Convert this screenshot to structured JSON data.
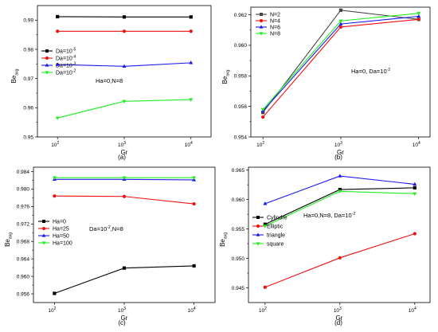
{
  "chart_data": [
    {
      "id": "a",
      "type": "line",
      "caption": "(a)",
      "xlabel": "Gr",
      "ylabel": "Be",
      "ylabel_sub": "avg",
      "x": [
        100,
        1000,
        10000
      ],
      "xscale": "log",
      "xlim": [
        50,
        20000
      ],
      "xticks": [
        {
          "value": 100,
          "base": "10",
          "exp": "2"
        },
        {
          "value": 1000,
          "base": "10",
          "exp": "3"
        },
        {
          "value": 10000,
          "base": "10",
          "exp": "4"
        }
      ],
      "ylim": [
        0.95,
        0.995
      ],
      "yticks": [
        {
          "value": 0.95,
          "label": "0.95"
        },
        {
          "value": 0.96,
          "label": "0.96"
        },
        {
          "value": 0.97,
          "label": "0.97"
        },
        {
          "value": 0.98,
          "label": "0.98"
        },
        {
          "value": 0.99,
          "label": "0.99"
        }
      ],
      "series": [
        {
          "name": "Da=10",
          "name_sup": "-5",
          "color": "#000000",
          "marker": "square",
          "values": [
            0.9912,
            0.9911,
            0.9911
          ]
        },
        {
          "name": "Da=10",
          "name_sup": "-4",
          "color": "#ee1111",
          "marker": "circle",
          "values": [
            0.9862,
            0.9862,
            0.9862
          ]
        },
        {
          "name": "Da=10",
          "name_sup": "-3",
          "color": "#1a1aee",
          "marker": "triangle-up",
          "values": [
            0.9748,
            0.9742,
            0.9754
          ]
        },
        {
          "name": "Da=10",
          "name_sup": "-2",
          "color": "#22ee22",
          "marker": "triangle-down",
          "values": [
            0.9565,
            0.9622,
            0.9628
          ]
        }
      ],
      "legend_position": "left",
      "annotation": {
        "text": "Ha=0,N=8"
      }
    },
    {
      "id": "b",
      "type": "line",
      "caption": "(b)",
      "xlabel": "Gr",
      "ylabel": "Be",
      "ylabel_sub": "avg",
      "x": [
        100,
        1000,
        10000
      ],
      "xscale": "log",
      "xlim": [
        70,
        14000
      ],
      "xticks": [
        {
          "value": 100,
          "base": "10",
          "exp": "2"
        },
        {
          "value": 1000,
          "base": "10",
          "exp": "3"
        },
        {
          "value": 10000,
          "base": "10",
          "exp": "4"
        }
      ],
      "ylim": [
        0.954,
        0.9625
      ],
      "yticks": [
        {
          "value": 0.954,
          "label": "0.954"
        },
        {
          "value": 0.956,
          "label": "0.956"
        },
        {
          "value": 0.958,
          "label": "0.958"
        },
        {
          "value": 0.96,
          "label": "0.960"
        },
        {
          "value": 0.962,
          "label": "0.962"
        }
      ],
      "series": [
        {
          "name": "N=2",
          "color": "#444444",
          "marker": "square",
          "values": [
            0.9556,
            0.9623,
            0.9617
          ]
        },
        {
          "name": "N=4",
          "color": "#ee1111",
          "marker": "circle",
          "values": [
            0.9553,
            0.9612,
            0.9617
          ]
        },
        {
          "name": "N=6",
          "color": "#1a1aee",
          "marker": "triangle-up",
          "values": [
            0.9557,
            0.9614,
            0.9619
          ]
        },
        {
          "name": "N=8",
          "color": "#22ee22",
          "marker": "triangle-down",
          "values": [
            0.9558,
            0.9616,
            0.9621
          ]
        }
      ],
      "legend_position": "top-left",
      "annotation": {
        "text": "Ha=0, Da=10",
        "text_sup": "-2"
      }
    },
    {
      "id": "c",
      "type": "line",
      "caption": "(c)",
      "xlabel": "Gr",
      "ylabel": "Be",
      "ylabel_sub": "avg",
      "x": [
        100,
        1000,
        10000
      ],
      "xscale": "log",
      "xlim": [
        50,
        20000
      ],
      "xticks": [
        {
          "value": 100,
          "base": "10",
          "exp": "2"
        },
        {
          "value": 1000,
          "base": "10",
          "exp": "3"
        },
        {
          "value": 10000,
          "base": "10",
          "exp": "4"
        }
      ],
      "ylim": [
        0.954,
        0.985
      ],
      "yticks": [
        {
          "value": 0.956,
          "label": "0.956"
        },
        {
          "value": 0.96,
          "label": "0.960"
        },
        {
          "value": 0.964,
          "label": "0.964"
        },
        {
          "value": 0.968,
          "label": "0.968"
        },
        {
          "value": 0.972,
          "label": "0.972"
        },
        {
          "value": 0.976,
          "label": "0.976"
        },
        {
          "value": 0.98,
          "label": "0.980"
        },
        {
          "value": 0.984,
          "label": "0.984"
        }
      ],
      "series": [
        {
          "name": "Ha=0",
          "color": "#000000",
          "marker": "square",
          "values": [
            0.9561,
            0.9619,
            0.9624
          ]
        },
        {
          "name": "Ha=25",
          "color": "#ee1111",
          "marker": "circle",
          "values": [
            0.9784,
            0.9783,
            0.9766
          ]
        },
        {
          "name": "Ha=50",
          "color": "#1a1aee",
          "marker": "triangle-up",
          "values": [
            0.9822,
            0.9822,
            0.9821
          ]
        },
        {
          "name": "Ha=100",
          "color": "#22ee22",
          "marker": "triangle-down",
          "values": [
            0.9826,
            0.9826,
            0.9826
          ]
        }
      ],
      "legend_position": "left",
      "annotation": {
        "text": "Da=10",
        "text_sup": "-2",
        "text_tail": ",N=8"
      }
    },
    {
      "id": "d",
      "type": "line",
      "caption": "(d)",
      "xlabel": "Gr",
      "ylabel": "Be",
      "ylabel_sub": "avg",
      "x": [
        100,
        1000,
        10000
      ],
      "xscale": "log",
      "xlim": [
        60,
        16000
      ],
      "xticks": [
        {
          "value": 100,
          "base": "10",
          "exp": "2"
        },
        {
          "value": 1000,
          "base": "10",
          "exp": "3"
        },
        {
          "value": 10000,
          "base": "10",
          "exp": "4"
        }
      ],
      "ylim": [
        0.9425,
        0.9655
      ],
      "yticks": [
        {
          "value": 0.945,
          "label": "0.945"
        },
        {
          "value": 0.95,
          "label": "0.950"
        },
        {
          "value": 0.955,
          "label": "0.955"
        },
        {
          "value": 0.96,
          "label": "0.960"
        },
        {
          "value": 0.965,
          "label": "0.965"
        }
      ],
      "series": [
        {
          "name": "Cylindre",
          "color": "#000000",
          "marker": "square",
          "values": [
            0.9558,
            0.9617,
            0.962
          ]
        },
        {
          "name": "Elliptic",
          "color": "#ee1111",
          "marker": "circle",
          "values": [
            0.9451,
            0.9501,
            0.9542
          ]
        },
        {
          "name": "triangle",
          "color": "#1a1aee",
          "marker": "triangle-up",
          "values": [
            0.9593,
            0.964,
            0.9626
          ]
        },
        {
          "name": "square",
          "color": "#22ee22",
          "marker": "triangle-down",
          "values": [
            0.9555,
            0.9614,
            0.961
          ]
        }
      ],
      "legend_position": "left",
      "annotation": {
        "text": "Ha=0,N=8, Da=10",
        "text_sup": "-2"
      }
    }
  ]
}
